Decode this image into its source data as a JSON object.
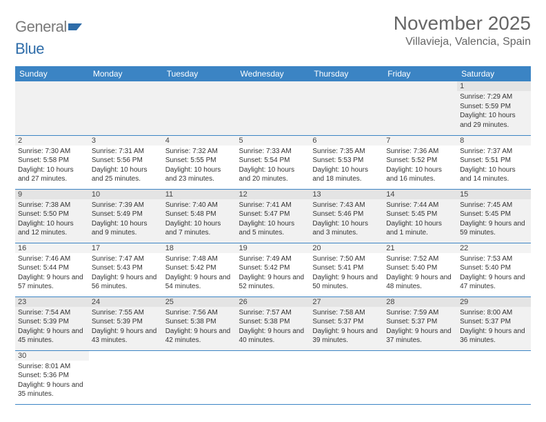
{
  "logo": {
    "general": "General",
    "blue": "Blue"
  },
  "title": "November 2025",
  "location": "Villavieja, Valencia, Spain",
  "colors": {
    "header_bg": "#3b84c4",
    "header_text": "#ffffff",
    "rule": "#3b84c4",
    "odd_row": "#f1f1f1",
    "even_row": "#ffffff",
    "logo_gray": "#7a7a7a",
    "logo_blue": "#2f6da9"
  },
  "daysOfWeek": [
    "Sunday",
    "Monday",
    "Tuesday",
    "Wednesday",
    "Thursday",
    "Friday",
    "Saturday"
  ],
  "weeks": [
    [
      null,
      null,
      null,
      null,
      null,
      null,
      {
        "n": "1",
        "sr": "Sunrise: 7:29 AM",
        "ss": "Sunset: 5:59 PM",
        "dl": "Daylight: 10 hours and 29 minutes."
      }
    ],
    [
      {
        "n": "2",
        "sr": "Sunrise: 7:30 AM",
        "ss": "Sunset: 5:58 PM",
        "dl": "Daylight: 10 hours and 27 minutes."
      },
      {
        "n": "3",
        "sr": "Sunrise: 7:31 AM",
        "ss": "Sunset: 5:56 PM",
        "dl": "Daylight: 10 hours and 25 minutes."
      },
      {
        "n": "4",
        "sr": "Sunrise: 7:32 AM",
        "ss": "Sunset: 5:55 PM",
        "dl": "Daylight: 10 hours and 23 minutes."
      },
      {
        "n": "5",
        "sr": "Sunrise: 7:33 AM",
        "ss": "Sunset: 5:54 PM",
        "dl": "Daylight: 10 hours and 20 minutes."
      },
      {
        "n": "6",
        "sr": "Sunrise: 7:35 AM",
        "ss": "Sunset: 5:53 PM",
        "dl": "Daylight: 10 hours and 18 minutes."
      },
      {
        "n": "7",
        "sr": "Sunrise: 7:36 AM",
        "ss": "Sunset: 5:52 PM",
        "dl": "Daylight: 10 hours and 16 minutes."
      },
      {
        "n": "8",
        "sr": "Sunrise: 7:37 AM",
        "ss": "Sunset: 5:51 PM",
        "dl": "Daylight: 10 hours and 14 minutes."
      }
    ],
    [
      {
        "n": "9",
        "sr": "Sunrise: 7:38 AM",
        "ss": "Sunset: 5:50 PM",
        "dl": "Daylight: 10 hours and 12 minutes."
      },
      {
        "n": "10",
        "sr": "Sunrise: 7:39 AM",
        "ss": "Sunset: 5:49 PM",
        "dl": "Daylight: 10 hours and 9 minutes."
      },
      {
        "n": "11",
        "sr": "Sunrise: 7:40 AM",
        "ss": "Sunset: 5:48 PM",
        "dl": "Daylight: 10 hours and 7 minutes."
      },
      {
        "n": "12",
        "sr": "Sunrise: 7:41 AM",
        "ss": "Sunset: 5:47 PM",
        "dl": "Daylight: 10 hours and 5 minutes."
      },
      {
        "n": "13",
        "sr": "Sunrise: 7:43 AM",
        "ss": "Sunset: 5:46 PM",
        "dl": "Daylight: 10 hours and 3 minutes."
      },
      {
        "n": "14",
        "sr": "Sunrise: 7:44 AM",
        "ss": "Sunset: 5:45 PM",
        "dl": "Daylight: 10 hours and 1 minute."
      },
      {
        "n": "15",
        "sr": "Sunrise: 7:45 AM",
        "ss": "Sunset: 5:45 PM",
        "dl": "Daylight: 9 hours and 59 minutes."
      }
    ],
    [
      {
        "n": "16",
        "sr": "Sunrise: 7:46 AM",
        "ss": "Sunset: 5:44 PM",
        "dl": "Daylight: 9 hours and 57 minutes."
      },
      {
        "n": "17",
        "sr": "Sunrise: 7:47 AM",
        "ss": "Sunset: 5:43 PM",
        "dl": "Daylight: 9 hours and 56 minutes."
      },
      {
        "n": "18",
        "sr": "Sunrise: 7:48 AM",
        "ss": "Sunset: 5:42 PM",
        "dl": "Daylight: 9 hours and 54 minutes."
      },
      {
        "n": "19",
        "sr": "Sunrise: 7:49 AM",
        "ss": "Sunset: 5:42 PM",
        "dl": "Daylight: 9 hours and 52 minutes."
      },
      {
        "n": "20",
        "sr": "Sunrise: 7:50 AM",
        "ss": "Sunset: 5:41 PM",
        "dl": "Daylight: 9 hours and 50 minutes."
      },
      {
        "n": "21",
        "sr": "Sunrise: 7:52 AM",
        "ss": "Sunset: 5:40 PM",
        "dl": "Daylight: 9 hours and 48 minutes."
      },
      {
        "n": "22",
        "sr": "Sunrise: 7:53 AM",
        "ss": "Sunset: 5:40 PM",
        "dl": "Daylight: 9 hours and 47 minutes."
      }
    ],
    [
      {
        "n": "23",
        "sr": "Sunrise: 7:54 AM",
        "ss": "Sunset: 5:39 PM",
        "dl": "Daylight: 9 hours and 45 minutes."
      },
      {
        "n": "24",
        "sr": "Sunrise: 7:55 AM",
        "ss": "Sunset: 5:39 PM",
        "dl": "Daylight: 9 hours and 43 minutes."
      },
      {
        "n": "25",
        "sr": "Sunrise: 7:56 AM",
        "ss": "Sunset: 5:38 PM",
        "dl": "Daylight: 9 hours and 42 minutes."
      },
      {
        "n": "26",
        "sr": "Sunrise: 7:57 AM",
        "ss": "Sunset: 5:38 PM",
        "dl": "Daylight: 9 hours and 40 minutes."
      },
      {
        "n": "27",
        "sr": "Sunrise: 7:58 AM",
        "ss": "Sunset: 5:37 PM",
        "dl": "Daylight: 9 hours and 39 minutes."
      },
      {
        "n": "28",
        "sr": "Sunrise: 7:59 AM",
        "ss": "Sunset: 5:37 PM",
        "dl": "Daylight: 9 hours and 37 minutes."
      },
      {
        "n": "29",
        "sr": "Sunrise: 8:00 AM",
        "ss": "Sunset: 5:37 PM",
        "dl": "Daylight: 9 hours and 36 minutes."
      }
    ],
    [
      {
        "n": "30",
        "sr": "Sunrise: 8:01 AM",
        "ss": "Sunset: 5:36 PM",
        "dl": "Daylight: 9 hours and 35 minutes."
      },
      null,
      null,
      null,
      null,
      null,
      null
    ]
  ]
}
